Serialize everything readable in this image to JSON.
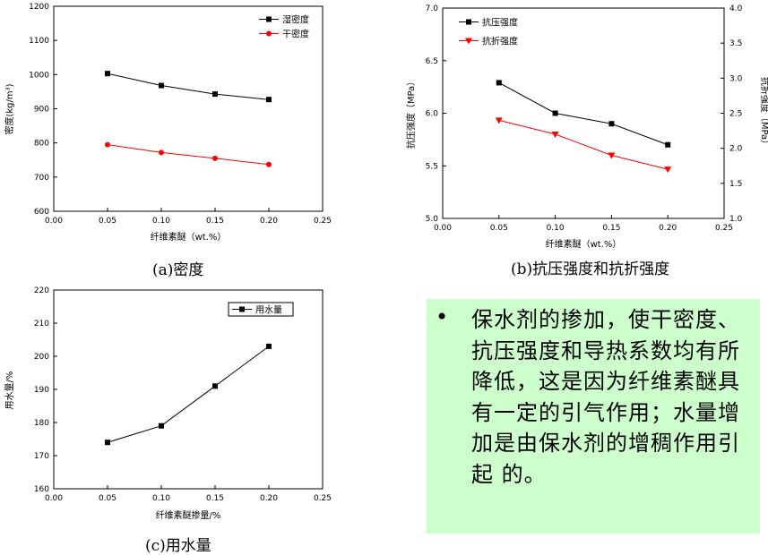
{
  "chart_data": [
    {
      "type": "line",
      "x": [
        0.05,
        0.1,
        0.15,
        0.2
      ],
      "xlim": [
        0.0,
        0.25
      ],
      "xticks": [
        "0.00",
        "0.05",
        "0.10",
        "0.15",
        "0.20",
        "0.25"
      ],
      "xlabel": "纤维素醚（wt.%）",
      "ylabel": "密度(kg/m³)",
      "ylim": [
        600,
        1200
      ],
      "yticks": [
        "600",
        "700",
        "800",
        "900",
        "1000",
        "1100",
        "1200"
      ],
      "legend_position": "top-right",
      "series": [
        {
          "name": "湿密度",
          "values": [
            1003,
            968,
            943,
            927
          ],
          "color": "#000000",
          "marker": "square"
        },
        {
          "name": "干密度",
          "values": [
            795,
            772,
            755,
            737
          ],
          "color": "#ff0000",
          "marker": "circle"
        }
      ],
      "caption": "(a)密度"
    },
    {
      "type": "line",
      "x": [
        0.05,
        0.1,
        0.15,
        0.2
      ],
      "xlim": [
        0.0,
        0.25
      ],
      "xticks": [
        "0.00",
        "0.05",
        "0.10",
        "0.15",
        "0.20",
        "0.25"
      ],
      "xlabel": "纤维素醚（wt.%）",
      "ylabel": "抗压强度（MPa）",
      "ylabel_right": "抗折强度（MPa）",
      "ylim": [
        5.0,
        7.0
      ],
      "yticks": [
        "5.0",
        "5.5",
        "6.0",
        "6.5",
        "7.0"
      ],
      "ylim_right": [
        1.0,
        4.0
      ],
      "yticks_right": [
        "1.0",
        "1.5",
        "2.0",
        "2.5",
        "3.0",
        "3.5",
        "4.0"
      ],
      "legend_position": "top-left",
      "series": [
        {
          "name": "抗压强度",
          "values": [
            6.29,
            6.0,
            5.9,
            5.7
          ],
          "color": "#000000",
          "marker": "square",
          "axis": "left"
        },
        {
          "name": "抗折强度",
          "values": [
            2.4,
            2.2,
            1.9,
            1.7
          ],
          "color": "#ff0000",
          "marker": "triangle-down",
          "axis": "right"
        }
      ],
      "caption": "(b)抗压强度和抗折强度"
    },
    {
      "type": "line",
      "x": [
        0.05,
        0.1,
        0.15,
        0.2
      ],
      "xlim": [
        0.0,
        0.25
      ],
      "xticks": [
        "0.00",
        "0.05",
        "0.10",
        "0.15",
        "0.20",
        "0.25"
      ],
      "xlabel": "纤维素醚掺量/%",
      "ylabel": "用水量/%",
      "ylim": [
        160,
        220
      ],
      "yticks": [
        "160",
        "170",
        "180",
        "190",
        "200",
        "210",
        "220"
      ],
      "legend_position": "top-right",
      "series": [
        {
          "name": "用水量",
          "values": [
            174,
            179,
            191,
            203
          ],
          "color": "#000000",
          "marker": "square"
        }
      ],
      "caption": "(c)用水量"
    }
  ],
  "note": {
    "bullet": "•",
    "text": "保水剂的掺加，使干密度、抗压强度和导热系数均有所降低，这是因为纤维素醚具有一定的引气作用；水量增加是由保水剂的增稠作用引起 的。"
  }
}
